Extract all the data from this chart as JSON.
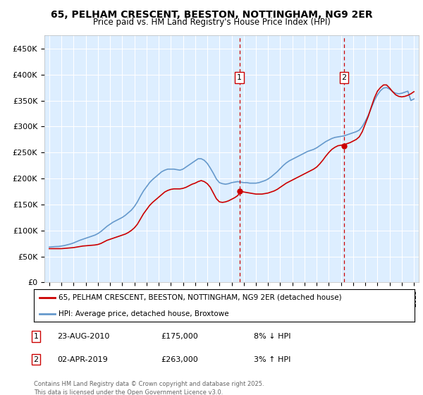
{
  "title": "65, PELHAM CRESCENT, BEESTON, NOTTINGHAM, NG9 2ER",
  "subtitle": "Price paid vs. HM Land Registry's House Price Index (HPI)",
  "ylim": [
    0,
    475000
  ],
  "yticks": [
    0,
    50000,
    100000,
    150000,
    200000,
    250000,
    300000,
    350000,
    400000,
    450000
  ],
  "ytick_labels": [
    "£0",
    "£50K",
    "£100K",
    "£150K",
    "£200K",
    "£250K",
    "£300K",
    "£350K",
    "£400K",
    "£450K"
  ],
  "xlim_start": 1994.6,
  "xlim_end": 2025.4,
  "marker1_x": 2010.644,
  "marker1_y": 175000,
  "marker1_label": "1",
  "marker1_date": "23-AUG-2010",
  "marker1_price": "£175,000",
  "marker1_hpi": "8% ↓ HPI",
  "marker2_x": 2019.247,
  "marker2_y": 263000,
  "marker2_label": "2",
  "marker2_date": "02-APR-2019",
  "marker2_price": "£263,000",
  "marker2_hpi": "3% ↑ HPI",
  "red_line_color": "#cc0000",
  "blue_line_color": "#6699cc",
  "background_color": "#ddeeff",
  "grid_color": "#ffffff",
  "legend_label_red": "65, PELHAM CRESCENT, BEESTON, NOTTINGHAM, NG9 2ER (detached house)",
  "legend_label_blue": "HPI: Average price, detached house, Broxtowe",
  "footer_text": "Contains HM Land Registry data © Crown copyright and database right 2025.\nThis data is licensed under the Open Government Licence v3.0.",
  "hpi_years": [
    1995.0,
    1995.25,
    1995.5,
    1995.75,
    1996.0,
    1996.25,
    1996.5,
    1996.75,
    1997.0,
    1997.25,
    1997.5,
    1997.75,
    1998.0,
    1998.25,
    1998.5,
    1998.75,
    1999.0,
    1999.25,
    1999.5,
    1999.75,
    2000.0,
    2000.25,
    2000.5,
    2000.75,
    2001.0,
    2001.25,
    2001.5,
    2001.75,
    2002.0,
    2002.25,
    2002.5,
    2002.75,
    2003.0,
    2003.25,
    2003.5,
    2003.75,
    2004.0,
    2004.25,
    2004.5,
    2004.75,
    2005.0,
    2005.25,
    2005.5,
    2005.75,
    2006.0,
    2006.25,
    2006.5,
    2006.75,
    2007.0,
    2007.25,
    2007.5,
    2007.75,
    2008.0,
    2008.25,
    2008.5,
    2008.75,
    2009.0,
    2009.25,
    2009.5,
    2009.75,
    2010.0,
    2010.25,
    2010.5,
    2010.75,
    2011.0,
    2011.25,
    2011.5,
    2011.75,
    2012.0,
    2012.25,
    2012.5,
    2012.75,
    2013.0,
    2013.25,
    2013.5,
    2013.75,
    2014.0,
    2014.25,
    2014.5,
    2014.75,
    2015.0,
    2015.25,
    2015.5,
    2015.75,
    2016.0,
    2016.25,
    2016.5,
    2016.75,
    2017.0,
    2017.25,
    2017.5,
    2017.75,
    2018.0,
    2018.25,
    2018.5,
    2018.75,
    2019.0,
    2019.25,
    2019.5,
    2019.75,
    2020.0,
    2020.25,
    2020.5,
    2020.75,
    2021.0,
    2021.25,
    2021.5,
    2021.75,
    2022.0,
    2022.25,
    2022.5,
    2022.75,
    2023.0,
    2023.25,
    2023.5,
    2023.75,
    2024.0,
    2024.25,
    2024.5,
    2024.75,
    2025.0
  ],
  "hpi_values": [
    68000,
    68500,
    69000,
    69200,
    70000,
    71000,
    72500,
    74000,
    76000,
    78500,
    81000,
    83000,
    85000,
    87000,
    89000,
    91000,
    94000,
    98000,
    103000,
    108000,
    112000,
    116000,
    119000,
    122000,
    125000,
    129000,
    134000,
    139000,
    146000,
    155000,
    166000,
    176000,
    184000,
    192000,
    198000,
    203000,
    208000,
    213000,
    216000,
    218000,
    218000,
    218000,
    217000,
    216000,
    218000,
    222000,
    226000,
    230000,
    234000,
    238000,
    238000,
    235000,
    229000,
    220000,
    210000,
    199000,
    192000,
    190000,
    189000,
    190000,
    192000,
    193000,
    194000,
    193000,
    192000,
    192000,
    191000,
    191000,
    191000,
    192000,
    194000,
    196000,
    199000,
    203000,
    208000,
    213000,
    219000,
    225000,
    230000,
    234000,
    237000,
    240000,
    243000,
    246000,
    249000,
    252000,
    254000,
    256000,
    259000,
    263000,
    267000,
    271000,
    274000,
    277000,
    279000,
    280000,
    281000,
    282000,
    284000,
    286000,
    288000,
    290000,
    293000,
    300000,
    310000,
    322000,
    336000,
    350000,
    361000,
    369000,
    374000,
    375000,
    372000,
    367000,
    364000,
    363000,
    364000,
    366000,
    368000,
    350000,
    353000
  ],
  "price_years": [
    1995.0,
    1995.25,
    1995.5,
    1995.75,
    1996.0,
    1996.25,
    1996.5,
    1996.75,
    1997.0,
    1997.25,
    1997.5,
    1997.75,
    1998.0,
    1998.25,
    1998.5,
    1998.75,
    1999.0,
    1999.25,
    1999.5,
    1999.75,
    2000.0,
    2000.25,
    2000.5,
    2000.75,
    2001.0,
    2001.25,
    2001.5,
    2001.75,
    2002.0,
    2002.25,
    2002.5,
    2002.75,
    2003.0,
    2003.25,
    2003.5,
    2003.75,
    2004.0,
    2004.25,
    2004.5,
    2004.75,
    2005.0,
    2005.25,
    2005.5,
    2005.75,
    2006.0,
    2006.25,
    2006.5,
    2006.75,
    2007.0,
    2007.25,
    2007.5,
    2007.75,
    2008.0,
    2008.25,
    2008.5,
    2008.75,
    2009.0,
    2009.25,
    2009.5,
    2009.75,
    2010.0,
    2010.25,
    2010.5,
    2010.75,
    2011.0,
    2011.25,
    2011.5,
    2011.75,
    2012.0,
    2012.25,
    2012.5,
    2012.75,
    2013.0,
    2013.25,
    2013.5,
    2013.75,
    2014.0,
    2014.25,
    2014.5,
    2014.75,
    2015.0,
    2015.25,
    2015.5,
    2015.75,
    2016.0,
    2016.25,
    2016.5,
    2016.75,
    2017.0,
    2017.25,
    2017.5,
    2017.75,
    2018.0,
    2018.25,
    2018.5,
    2018.75,
    2019.0,
    2019.25,
    2019.5,
    2019.75,
    2020.0,
    2020.25,
    2020.5,
    2020.75,
    2021.0,
    2021.25,
    2021.5,
    2021.75,
    2022.0,
    2022.25,
    2022.5,
    2022.75,
    2023.0,
    2023.25,
    2023.5,
    2023.75,
    2024.0,
    2024.25,
    2024.5,
    2024.75,
    2025.0
  ],
  "price_values": [
    65000,
    65000,
    65000,
    65000,
    65000,
    65500,
    66000,
    66500,
    67000,
    68000,
    69000,
    70000,
    70500,
    71000,
    71500,
    72000,
    73000,
    75000,
    78000,
    81000,
    83000,
    85000,
    87000,
    89000,
    91000,
    93000,
    96000,
    100000,
    105000,
    112000,
    122000,
    132000,
    140000,
    148000,
    154000,
    159000,
    164000,
    169000,
    174000,
    177000,
    179000,
    180000,
    180000,
    180000,
    181000,
    183000,
    186000,
    189000,
    191000,
    194000,
    196000,
    194000,
    190000,
    183000,
    172000,
    161000,
    155000,
    154000,
    155000,
    157000,
    160000,
    163000,
    167000,
    175000,
    174000,
    173000,
    172000,
    171000,
    170000,
    170000,
    170000,
    171000,
    172000,
    174000,
    176000,
    179000,
    183000,
    187000,
    191000,
    194000,
    197000,
    200000,
    203000,
    206000,
    209000,
    212000,
    215000,
    218000,
    222000,
    228000,
    235000,
    243000,
    250000,
    256000,
    260000,
    263000,
    264000,
    265000,
    267000,
    269000,
    272000,
    275000,
    280000,
    290000,
    305000,
    320000,
    338000,
    355000,
    368000,
    375000,
    380000,
    380000,
    374000,
    367000,
    361000,
    358000,
    357000,
    358000,
    360000,
    363000,
    367000
  ]
}
